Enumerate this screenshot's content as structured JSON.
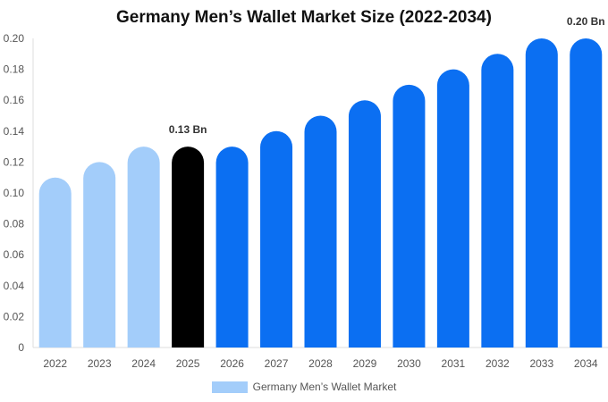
{
  "chart_data": {
    "type": "bar",
    "title": "Germany Men’s Wallet Market Size (2022-2034)",
    "categories": [
      "2022",
      "2023",
      "2024",
      "2025",
      "2026",
      "2027",
      "2028",
      "2029",
      "2030",
      "2031",
      "2032",
      "2033",
      "2034"
    ],
    "series": [
      {
        "name": "Germany Men’s Wallet Market",
        "values": [
          0.11,
          0.12,
          0.13,
          0.13,
          0.13,
          0.14,
          0.15,
          0.16,
          0.17,
          0.18,
          0.19,
          0.2,
          0.2
        ]
      }
    ],
    "bar_colors": [
      "#a3cdfa",
      "#a3cdfa",
      "#a3cdfa",
      "#000000",
      "#0b6ff2",
      "#0b6ff2",
      "#0b6ff2",
      "#0b6ff2",
      "#0b6ff2",
      "#0b6ff2",
      "#0b6ff2",
      "#0b6ff2",
      "#0b6ff2"
    ],
    "data_labels": [
      {
        "category": "2025",
        "text": "0.13 Bn"
      },
      {
        "category": "2034",
        "text": "0.20 Bn"
      }
    ],
    "ylim": [
      0,
      0.2
    ],
    "yticks": [
      "0",
      "0.02",
      "0.04",
      "0.06",
      "0.08",
      "0.10",
      "0.12",
      "0.14",
      "0.16",
      "0.18",
      "0.20"
    ],
    "grid": false,
    "legend_position": "bottom",
    "legend_color": "#a3cdfa"
  }
}
